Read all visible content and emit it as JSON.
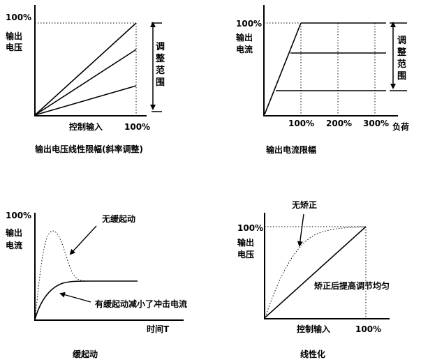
{
  "panel_tl": {
    "y_top_label": "100%",
    "y_label_1": "输出",
    "y_label_2": "电压",
    "side_label": [
      "调",
      "整",
      "范",
      "围"
    ],
    "x_label": "控制输入",
    "x_tick": "100%",
    "caption": "输出电压线性限幅(斜率调整)"
  },
  "panel_tr": {
    "y_top_label": "100%",
    "y_label_1": "输出",
    "y_label_2": "电流",
    "side_label": [
      "调",
      "整",
      "范",
      "围"
    ],
    "x_ticks": [
      "100%",
      "200%",
      "300%"
    ],
    "x_label": "负荷",
    "caption": "输出电流限幅"
  },
  "panel_bl": {
    "y_top_label": "100%",
    "y_label_1": "输出",
    "y_label_2": "电流",
    "annotation_1": "无缓起动",
    "annotation_2": "有缓起动减小了冲击电流",
    "x_label": "时间T",
    "caption": "缓起动"
  },
  "panel_br": {
    "y_top_label": "100%",
    "y_label_1": "输出",
    "y_label_2": "电压",
    "annotation_1": "无矫正",
    "annotation_2": "矫正后提高调节均匀",
    "x_label": "控制输入",
    "x_tick": "100%",
    "caption": "线性化"
  }
}
